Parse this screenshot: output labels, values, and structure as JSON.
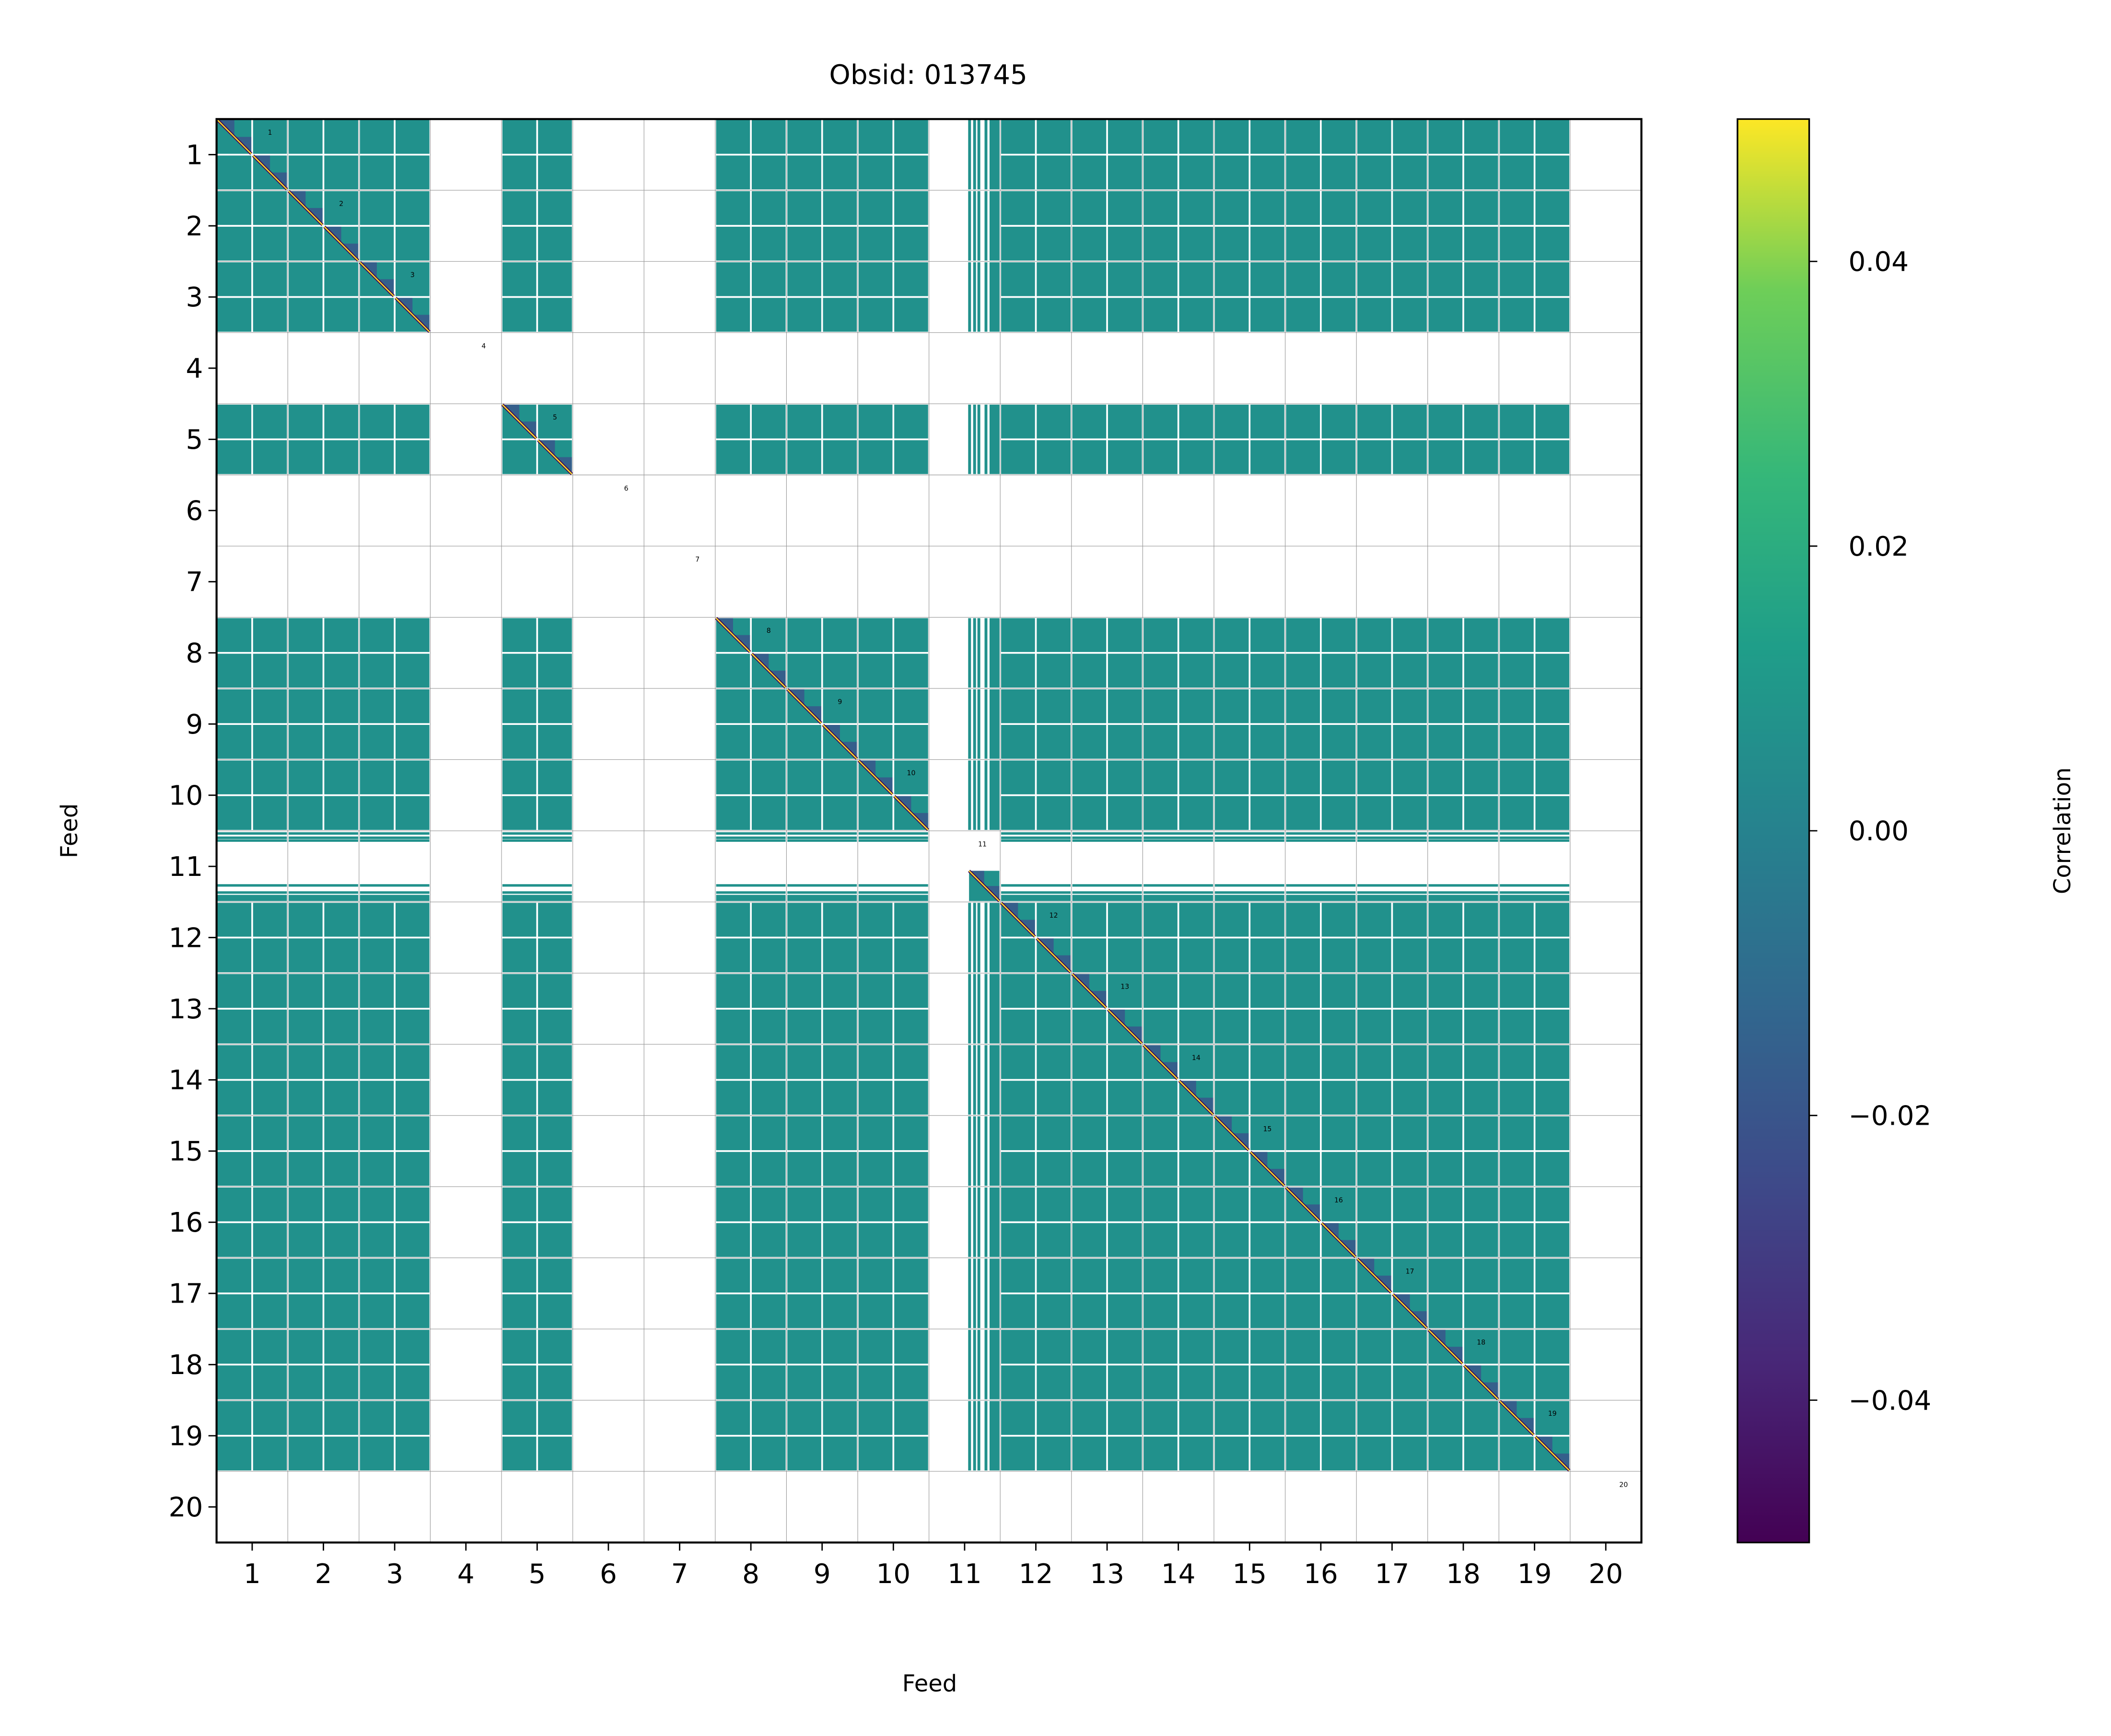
{
  "chart_data": {
    "type": "heatmap",
    "title": "Obsid: 013745",
    "xlabel": "Feed",
    "ylabel": "Feed",
    "x_ticks": [
      "1",
      "2",
      "3",
      "4",
      "5",
      "6",
      "7",
      "8",
      "9",
      "10",
      "11",
      "12",
      "13",
      "14",
      "15",
      "16",
      "17",
      "18",
      "19",
      "20"
    ],
    "y_ticks": [
      "1",
      "2",
      "3",
      "4",
      "5",
      "6",
      "7",
      "8",
      "9",
      "10",
      "11",
      "12",
      "13",
      "14",
      "15",
      "16",
      "17",
      "18",
      "19",
      "20"
    ],
    "feeds": [
      1,
      2,
      3,
      4,
      5,
      6,
      7,
      8,
      9,
      10,
      11,
      12,
      13,
      14,
      15,
      16,
      17,
      18,
      19,
      20
    ],
    "valid_feeds": [
      1,
      2,
      3,
      5,
      8,
      9,
      10,
      12,
      13,
      14,
      15,
      16,
      17,
      18,
      19
    ],
    "partial_feeds": [
      11
    ],
    "missing_feeds": [
      4,
      6,
      7,
      20
    ],
    "off_diagonal_value": 0.0,
    "diagonal_value": 0.05,
    "cell_annotations": [
      "1",
      "2",
      "3",
      "4",
      "5",
      "6",
      "7",
      "8",
      "9",
      "10",
      "11",
      "12",
      "13",
      "14",
      "15",
      "16",
      "17",
      "18",
      "19",
      "20"
    ],
    "grid": true,
    "colorbar": {
      "label": "Correlation",
      "colormap": "viridis",
      "clim": [
        -0.05,
        0.05
      ],
      "ticks": [
        0.04,
        0.02,
        0.0,
        -0.02,
        -0.04
      ],
      "tick_labels": [
        "0.04",
        "0.02",
        "0.00",
        "−0.02",
        "−0.04"
      ]
    },
    "colors": {
      "teal": "#21918c",
      "yellow": "#fde725",
      "purple": "#440154"
    }
  }
}
